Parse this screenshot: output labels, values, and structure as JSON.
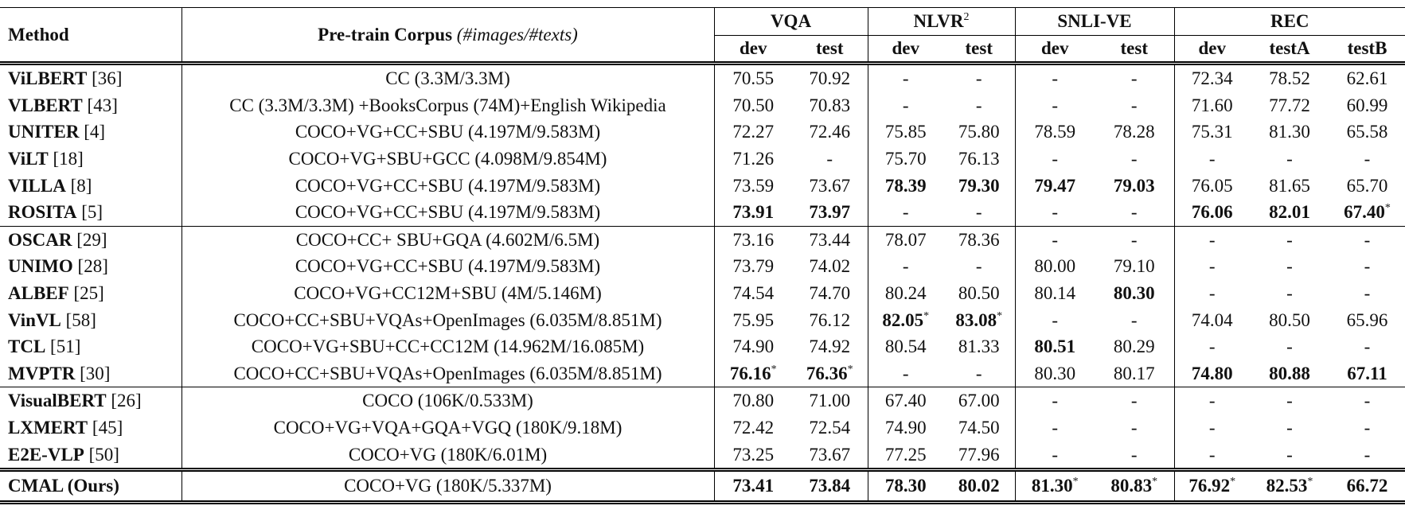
{
  "table": {
    "header": {
      "method": "Method",
      "corpus": "Pre-train Corpus",
      "corpus_note": "(#images/#texts)",
      "groups": [
        {
          "name": "VQA",
          "cols": [
            "dev",
            "test"
          ]
        },
        {
          "name": "NLVR",
          "sup": "2",
          "cols": [
            "dev",
            "test"
          ]
        },
        {
          "name": "SNLI-VE",
          "cols": [
            "dev",
            "test"
          ]
        },
        {
          "name": "REC",
          "cols": [
            "dev",
            "testA",
            "testB"
          ]
        }
      ]
    },
    "marker": "*",
    "groups": [
      {
        "rows": [
          {
            "method": "ViLBERT",
            "ref": "[36]",
            "corpus": "CC (3.3M/3.3M)",
            "values": [
              "70.55",
              "70.92",
              "-",
              "-",
              "-",
              "-",
              "72.34",
              "78.52",
              "62.61"
            ],
            "bold": [],
            "starred": []
          },
          {
            "method": "VLBERT",
            "ref": "[43]",
            "corpus": "CC (3.3M/3.3M) +BooksCorpus (74M)+English Wikipedia",
            "values": [
              "70.50",
              "70.83",
              "-",
              "-",
              "-",
              "-",
              "71.60",
              "77.72",
              "60.99"
            ],
            "bold": [],
            "starred": []
          },
          {
            "method": "UNITER",
            "ref": "[4]",
            "corpus": "COCO+VG+CC+SBU (4.197M/9.583M)",
            "values": [
              "72.27",
              "72.46",
              "75.85",
              "75.80",
              "78.59",
              "78.28",
              "75.31",
              "81.30",
              "65.58"
            ],
            "bold": [],
            "starred": []
          },
          {
            "method": "ViLT",
            "ref": "[18]",
            "corpus": "COCO+VG+SBU+GCC (4.098M/9.854M)",
            "values": [
              "71.26",
              "-",
              "75.70",
              "76.13",
              "-",
              "-",
              "-",
              "-",
              "-"
            ],
            "bold": [],
            "starred": []
          },
          {
            "method": "VILLA",
            "ref": "[8]",
            "corpus": "COCO+VG+CC+SBU (4.197M/9.583M)",
            "values": [
              "73.59",
              "73.67",
              "78.39",
              "79.30",
              "79.47",
              "79.03",
              "76.05",
              "81.65",
              "65.70"
            ],
            "bold": [
              2,
              3,
              4,
              5
            ],
            "starred": []
          },
          {
            "method": "ROSITA",
            "ref": "[5]",
            "corpus": "COCO+VG+CC+SBU (4.197M/9.583M)",
            "values": [
              "73.91",
              "73.97",
              "-",
              "-",
              "-",
              "-",
              "76.06",
              "82.01",
              "67.40"
            ],
            "bold": [
              0,
              1,
              6,
              7,
              8
            ],
            "starred": [
              8
            ]
          }
        ]
      },
      {
        "rows": [
          {
            "method": "OSCAR",
            "ref": "[29]",
            "corpus": "COCO+CC+ SBU+GQA (4.602M/6.5M)",
            "values": [
              "73.16",
              "73.44",
              "78.07",
              "78.36",
              "-",
              "-",
              "-",
              "-",
              "-"
            ],
            "bold": [],
            "starred": []
          },
          {
            "method": "UNIMO",
            "ref": "[28]",
            "corpus": "COCO+VG+CC+SBU (4.197M/9.583M)",
            "values": [
              "73.79",
              "74.02",
              "-",
              "-",
              "80.00",
              "79.10",
              "-",
              "-",
              "-"
            ],
            "bold": [],
            "starred": []
          },
          {
            "method": "ALBEF",
            "ref": "[25]",
            "corpus": "COCO+VG+CC12M+SBU (4M/5.146M)",
            "values": [
              "74.54",
              "74.70",
              "80.24",
              "80.50",
              "80.14",
              "80.30",
              "-",
              "-",
              "-"
            ],
            "bold": [
              5
            ],
            "starred": []
          },
          {
            "method": "VinVL",
            "ref": "[58]",
            "corpus": "COCO+CC+SBU+VQAs+OpenImages (6.035M/8.851M)",
            "values": [
              "75.95",
              "76.12",
              "82.05",
              "83.08",
              "-",
              "-",
              "74.04",
              "80.50",
              "65.96"
            ],
            "bold": [
              2,
              3
            ],
            "starred": [
              2,
              3
            ]
          },
          {
            "method": "TCL",
            "ref": "[51]",
            "corpus": "COCO+VG+SBU+CC+CC12M (14.962M/16.085M)",
            "values": [
              "74.90",
              "74.92",
              "80.54",
              "81.33",
              "80.51",
              "80.29",
              "-",
              "-",
              "-"
            ],
            "bold": [
              4
            ],
            "starred": []
          },
          {
            "method": "MVPTR",
            "ref": "[30]",
            "corpus": "COCO+CC+SBU+VQAs+OpenImages (6.035M/8.851M)",
            "values": [
              "76.16",
              "76.36",
              "-",
              "-",
              "80.30",
              "80.17",
              "74.80",
              "80.88",
              "67.11"
            ],
            "bold": [
              0,
              1,
              6,
              7,
              8
            ],
            "starred": [
              0,
              1
            ]
          }
        ]
      },
      {
        "rows": [
          {
            "method": "VisualBERT",
            "ref": "[26]",
            "corpus": "COCO (106K/0.533M)",
            "values": [
              "70.80",
              "71.00",
              "67.40",
              "67.00",
              "-",
              "-",
              "-",
              "-",
              "-"
            ],
            "bold": [],
            "starred": []
          },
          {
            "method": "LXMERT",
            "ref": "[45]",
            "corpus": "COCO+VG+VQA+GQA+VGQ (180K/9.18M)",
            "values": [
              "72.42",
              "72.54",
              "74.90",
              "74.50",
              "-",
              "-",
              "-",
              "-",
              "-"
            ],
            "bold": [],
            "starred": []
          },
          {
            "method": "E2E-VLP",
            "ref": "[50]",
            "corpus": "COCO+VG (180K/6.01M)",
            "values": [
              "73.25",
              "73.67",
              "77.25",
              "77.96",
              "-",
              "-",
              "-",
              "-",
              "-"
            ],
            "bold": [],
            "starred": []
          }
        ]
      },
      {
        "rows": [
          {
            "method": "CMAL (Ours)",
            "corpus": "COCO+VG (180K/5.337M)",
            "values": [
              "73.41",
              "73.84",
              "78.30",
              "80.02",
              "81.30",
              "80.83",
              "76.92",
              "82.53",
              "66.72"
            ],
            "bold": [
              0,
              1,
              2,
              3,
              4,
              5,
              6,
              7,
              8
            ],
            "starred": [
              4,
              5,
              6,
              7
            ]
          }
        ]
      }
    ]
  }
}
